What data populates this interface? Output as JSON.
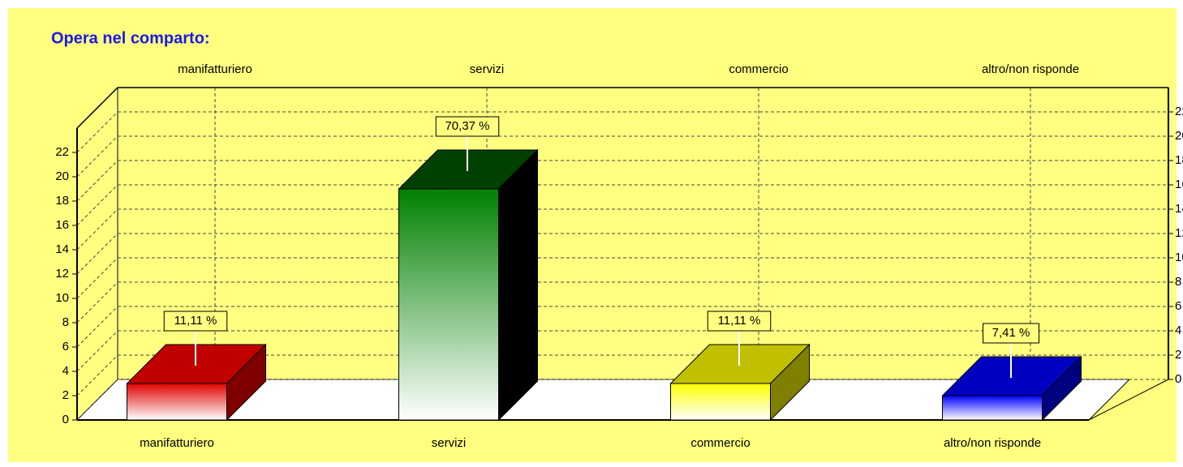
{
  "chart_data": {
    "type": "bar3d",
    "title": "Opera nel comparto:",
    "categories": [
      "manifatturiero",
      "servizi",
      "commercio",
      "altro/non risponde"
    ],
    "values": [
      3,
      19,
      3,
      2
    ],
    "percentages": [
      11.11,
      70.37,
      11.11,
      7.41
    ],
    "percent_labels": [
      "11,11 %",
      "70,37 %",
      "11,11 %",
      "7,41 %"
    ],
    "colors": [
      "#e00000",
      "#008000",
      "#ffff00",
      "#0000ff"
    ],
    "top_colors": [
      "#c00000",
      "#004000",
      "#c0c000",
      "#0000c0"
    ],
    "side_colors": [
      "#800000",
      "#000000",
      "#808000",
      "#000080"
    ],
    "ylim": [
      0,
      24
    ],
    "yticks": [
      0,
      2,
      4,
      6,
      8,
      10,
      12,
      14,
      16,
      18,
      20,
      22
    ],
    "grid": true
  }
}
